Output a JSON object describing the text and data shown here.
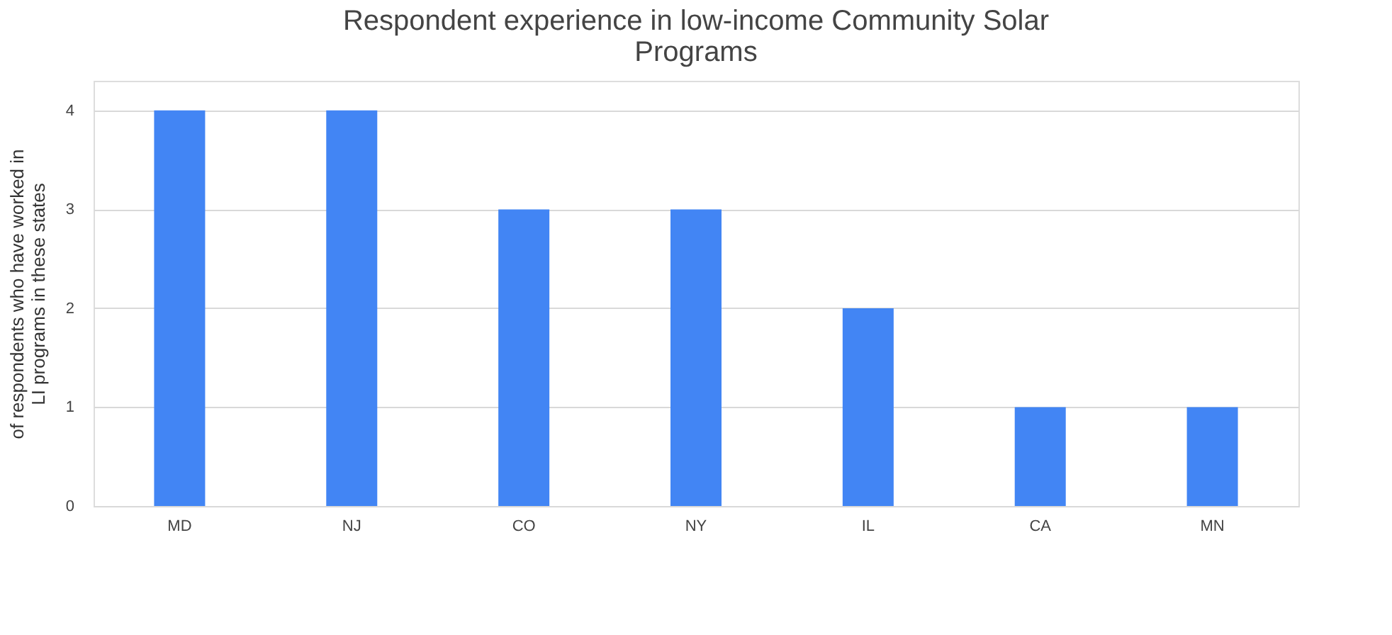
{
  "chart_data": {
    "type": "bar",
    "title": "Respondent experience in low-income Community Solar Programs",
    "ylabel": "of respondents who have worked in LI programs in these states",
    "categories": [
      "MD",
      "NJ",
      "CO",
      "NY",
      "IL",
      "CA",
      "MN"
    ],
    "values": [
      4,
      4,
      3,
      3,
      2,
      1,
      1
    ],
    "color": "#4285f4",
    "ylim": [
      0,
      4.3
    ],
    "yticks": [
      0,
      1,
      2,
      3,
      4
    ],
    "grid": "y"
  }
}
